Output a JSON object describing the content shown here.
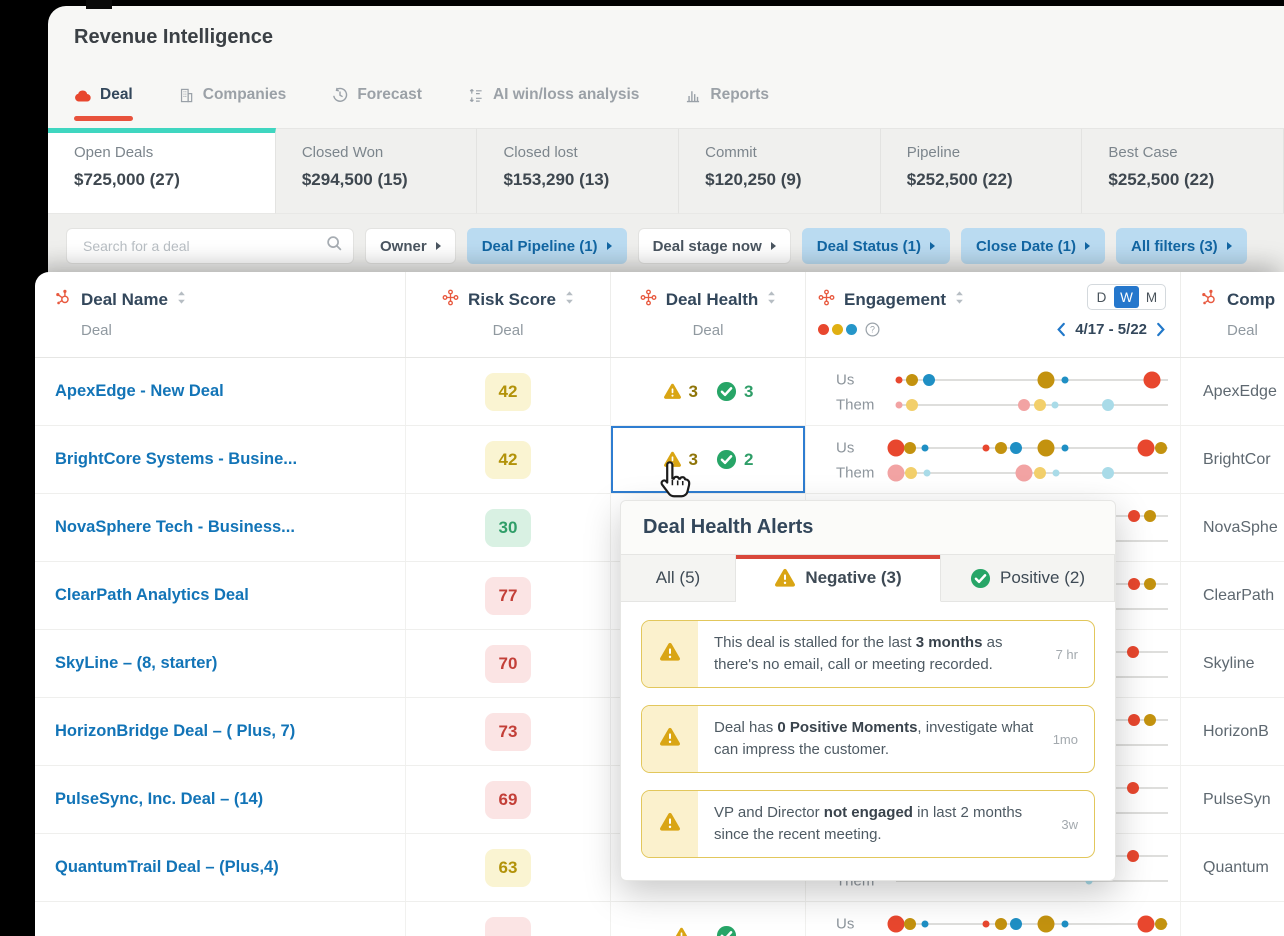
{
  "app": {
    "title": "Revenue Intelligence",
    "tabs": [
      {
        "label": "Deal",
        "icon": "deal-icon",
        "active": true
      },
      {
        "label": "Companies",
        "icon": "companies-icon",
        "active": false
      },
      {
        "label": "Forecast",
        "icon": "forecast-icon",
        "active": false
      },
      {
        "label": "AI win/loss analysis",
        "icon": "winloss-icon",
        "active": false
      },
      {
        "label": "Reports",
        "icon": "reports-icon",
        "active": false
      }
    ]
  },
  "summary_cards": [
    {
      "label": "Open Deals",
      "value": "$725,000 (27)",
      "active": true,
      "accent": "#3fd6c0"
    },
    {
      "label": "Closed Won",
      "value": "$294,500 (15)",
      "active": false
    },
    {
      "label": "Closed lost",
      "value": "$153,290 (13)",
      "active": false
    },
    {
      "label": "Commit",
      "value": "$120,250 (9)",
      "active": false
    },
    {
      "label": "Pipeline",
      "value": "$252,500 (22)",
      "active": false
    },
    {
      "label": "Best Case",
      "value": "$252,500 (22)",
      "active": false
    }
  ],
  "filter_bar": {
    "search_placeholder": "Search for a deal",
    "buttons": [
      {
        "label": "Owner",
        "active": false
      },
      {
        "label": "Deal Pipeline (1)",
        "active": true
      },
      {
        "label": "Deal stage now",
        "active": false
      },
      {
        "label": "Deal Status (1)",
        "active": true
      },
      {
        "label": "Close Date (1)",
        "active": true
      },
      {
        "label": "All filters (3)",
        "active": true
      }
    ]
  },
  "table": {
    "columns": [
      {
        "title": "Deal Name",
        "subtitle": "Deal",
        "icon": "hubspot-sprocket-icon",
        "sortable": true,
        "align": "left"
      },
      {
        "title": "Risk Score",
        "subtitle": "Deal",
        "icon": "property-icon",
        "sortable": true,
        "align": "center"
      },
      {
        "title": "Deal Health",
        "subtitle": "Deal",
        "icon": "property-icon",
        "sortable": true,
        "align": "center"
      },
      {
        "title": "Engagement",
        "icon": "property-icon",
        "sortable": true,
        "align": "engagement",
        "legend_dot_colors": [
          "#e8472e",
          "#e0af12",
          "#2596c9"
        ],
        "help_icon": "question-icon"
      },
      {
        "title": "Comp",
        "subtitle": "Deal",
        "icon": "hubspot-sprocket-icon",
        "sortable": false,
        "align": "left"
      }
    ],
    "engagement_controls": {
      "granularity": [
        "D",
        "W",
        "M"
      ],
      "active": "W",
      "range": "4/17 - 5/22"
    },
    "engagement_labels": {
      "us": "Us",
      "them": "Them"
    },
    "dot_colors": {
      "red": "#e8472e",
      "gold": "#c3920f",
      "blue": "#1f8fc4",
      "pink": "#f2a3a3",
      "yellow": "#f2cf6b",
      "lblue": "#a9dbe8"
    },
    "rows": [
      {
        "deal_name": "ApexEdge - New Deal",
        "risk_score": "42",
        "risk_level": "yellow",
        "health": {
          "negative": "3",
          "positive": "3"
        },
        "selected_health": false,
        "company": "ApexEdge",
        "engagement": {
          "us": [
            [
              0.01,
              "red",
              "s"
            ],
            [
              0.06,
              "gold",
              "m"
            ],
            [
              0.12,
              "blue",
              "m"
            ],
            [
              0.55,
              "gold",
              "l"
            ],
            [
              0.62,
              "blue",
              "s"
            ],
            [
              0.94,
              "red",
              "l"
            ]
          ],
          "them": [
            [
              0.01,
              "pink",
              "s"
            ],
            [
              0.06,
              "yellow",
              "m"
            ],
            [
              0.47,
              "pink",
              "m"
            ],
            [
              0.53,
              "yellow",
              "m"
            ],
            [
              0.585,
              "lblue",
              "s"
            ],
            [
              0.78,
              "lblue",
              "m"
            ]
          ]
        }
      },
      {
        "deal_name": "BrightCore Systems - Busine...",
        "risk_score": "42",
        "risk_level": "yellow",
        "health": {
          "negative": "3",
          "positive": "2"
        },
        "selected_health": true,
        "company": "BrightCor",
        "engagement": {
          "us": [
            [
              0.0,
              "red",
              "l"
            ],
            [
              0.05,
              "gold",
              "m"
            ],
            [
              0.105,
              "blue",
              "s"
            ],
            [
              0.33,
              "red",
              "s"
            ],
            [
              0.385,
              "gold",
              "m"
            ],
            [
              0.44,
              "blue",
              "m"
            ],
            [
              0.55,
              "gold",
              "l"
            ],
            [
              0.62,
              "blue",
              "s"
            ],
            [
              0.92,
              "red",
              "l"
            ],
            [
              0.975,
              "gold",
              "m"
            ]
          ],
          "them": [
            [
              0.0,
              "pink",
              "l"
            ],
            [
              0.055,
              "yellow",
              "m"
            ],
            [
              0.115,
              "lblue",
              "s"
            ],
            [
              0.47,
              "pink",
              "l"
            ],
            [
              0.53,
              "yellow",
              "m"
            ],
            [
              0.59,
              "lblue",
              "s"
            ],
            [
              0.78,
              "lblue",
              "m"
            ]
          ]
        }
      },
      {
        "deal_name": "NovaSphere Tech - Business...",
        "risk_score": "30",
        "risk_level": "green",
        "health": null,
        "selected_health": false,
        "company": "NovaSphe",
        "engagement": {
          "us": [
            [
              0.875,
              "red",
              "m"
            ],
            [
              0.935,
              "gold",
              "m"
            ]
          ],
          "them": []
        }
      },
      {
        "deal_name": "ClearPath Analytics Deal",
        "risk_score": "77",
        "risk_level": "red",
        "health": null,
        "selected_health": false,
        "company": "ClearPath",
        "engagement": {
          "us": [
            [
              0.875,
              "red",
              "m"
            ],
            [
              0.935,
              "gold",
              "m"
            ]
          ],
          "them": []
        }
      },
      {
        "deal_name": "SkyLine – (8, starter)",
        "risk_score": "70",
        "risk_level": "red",
        "health": null,
        "selected_health": false,
        "company": "Skyline",
        "engagement": {
          "us": [
            [
              0.87,
              "red",
              "m"
            ]
          ],
          "them": []
        }
      },
      {
        "deal_name": "HorizonBridge Deal – ( Plus, 7)",
        "risk_score": "73",
        "risk_level": "red",
        "health": null,
        "selected_health": false,
        "company": "HorizonB",
        "engagement": {
          "us": [
            [
              0.875,
              "red",
              "m"
            ],
            [
              0.935,
              "gold",
              "m"
            ]
          ],
          "them": []
        }
      },
      {
        "deal_name": "PulseSync, Inc. Deal – (14)",
        "risk_score": "69",
        "risk_level": "red",
        "health": null,
        "selected_health": false,
        "company": "PulseSyn",
        "engagement": {
          "us": [
            [
              0.87,
              "red",
              "m"
            ]
          ],
          "them": []
        }
      },
      {
        "deal_name": "QuantumTrail Deal – (Plus,4)",
        "risk_score": "63",
        "risk_level": "yellow",
        "health": null,
        "selected_health": false,
        "company": "Quantum",
        "engagement": {
          "us": [
            [
              0.87,
              "red",
              "m"
            ]
          ],
          "them": [
            [
              0.71,
              "lblue",
              "s"
            ]
          ]
        }
      },
      {
        "deal_name": "",
        "risk_score": "",
        "risk_level": "red",
        "health": {
          "negative": "",
          "positive": ""
        },
        "selected_health": false,
        "company": "",
        "engagement": {
          "us": [
            [
              0.0,
              "red",
              "l"
            ],
            [
              0.05,
              "gold",
              "m"
            ],
            [
              0.105,
              "blue",
              "s"
            ],
            [
              0.33,
              "red",
              "s"
            ],
            [
              0.385,
              "gold",
              "m"
            ],
            [
              0.44,
              "blue",
              "m"
            ],
            [
              0.55,
              "gold",
              "l"
            ],
            [
              0.62,
              "blue",
              "s"
            ],
            [
              0.92,
              "red",
              "l"
            ],
            [
              0.975,
              "gold",
              "m"
            ]
          ],
          "them": []
        }
      }
    ]
  },
  "popup": {
    "title": "Deal Health Alerts",
    "tabs": [
      {
        "label": "All (5)",
        "active": false
      },
      {
        "label": "Negative (3)",
        "icon": "warning-icon",
        "active": true
      },
      {
        "label": "Positive (2)",
        "icon": "check-icon",
        "active": false
      }
    ],
    "alerts": [
      {
        "segments": [
          {
            "text": "This deal is stalled for the last "
          },
          {
            "text": "3 months",
            "bold": true
          },
          {
            "text": " as there's no email, call or meeting recorded."
          }
        ],
        "time": "7 hr"
      },
      {
        "segments": [
          {
            "text": "Deal has "
          },
          {
            "text": "0 Positive Moments",
            "bold": true
          },
          {
            "text": ", investigate what can impress the customer."
          }
        ],
        "time": "1mo"
      },
      {
        "segments": [
          {
            "text": "VP and Director "
          },
          {
            "text": "not engaged",
            "bold": true
          },
          {
            "text": " in last 2 months since the recent meeting."
          }
        ],
        "time": "3w"
      }
    ]
  }
}
